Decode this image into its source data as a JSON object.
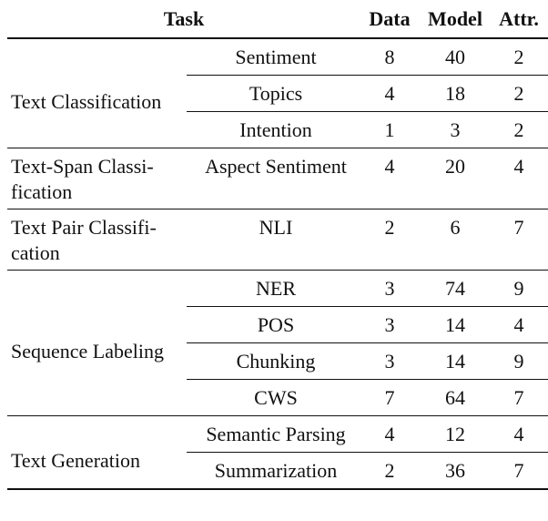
{
  "header": {
    "task": "Task",
    "data": "Data",
    "model": "Model",
    "attr": "Attr."
  },
  "groups": [
    {
      "task": [
        "Text Classification"
      ],
      "rows": [
        [
          "Sentiment",
          8,
          40,
          2
        ],
        [
          "Topics",
          4,
          18,
          2
        ],
        [
          "Intention",
          1,
          3,
          2
        ]
      ]
    },
    {
      "task": [
        "Text-Span Classi-",
        "fication"
      ],
      "rows": [
        [
          "Aspect Sentiment",
          4,
          20,
          4
        ]
      ]
    },
    {
      "task": [
        "Text Pair Classifi-",
        "cation"
      ],
      "rows": [
        [
          "NLI",
          2,
          6,
          7
        ]
      ]
    },
    {
      "task": [
        "Sequence Labeling"
      ],
      "rows": [
        [
          "NER",
          3,
          74,
          9
        ],
        [
          "POS",
          3,
          14,
          4
        ],
        [
          "Chunking",
          3,
          14,
          9
        ],
        [
          "CWS",
          7,
          64,
          7
        ]
      ]
    },
    {
      "task": [
        "Text Generation"
      ],
      "rows": [
        [
          "Semantic Parsing",
          4,
          12,
          4
        ],
        [
          "Summarization",
          2,
          36,
          7
        ]
      ]
    }
  ]
}
